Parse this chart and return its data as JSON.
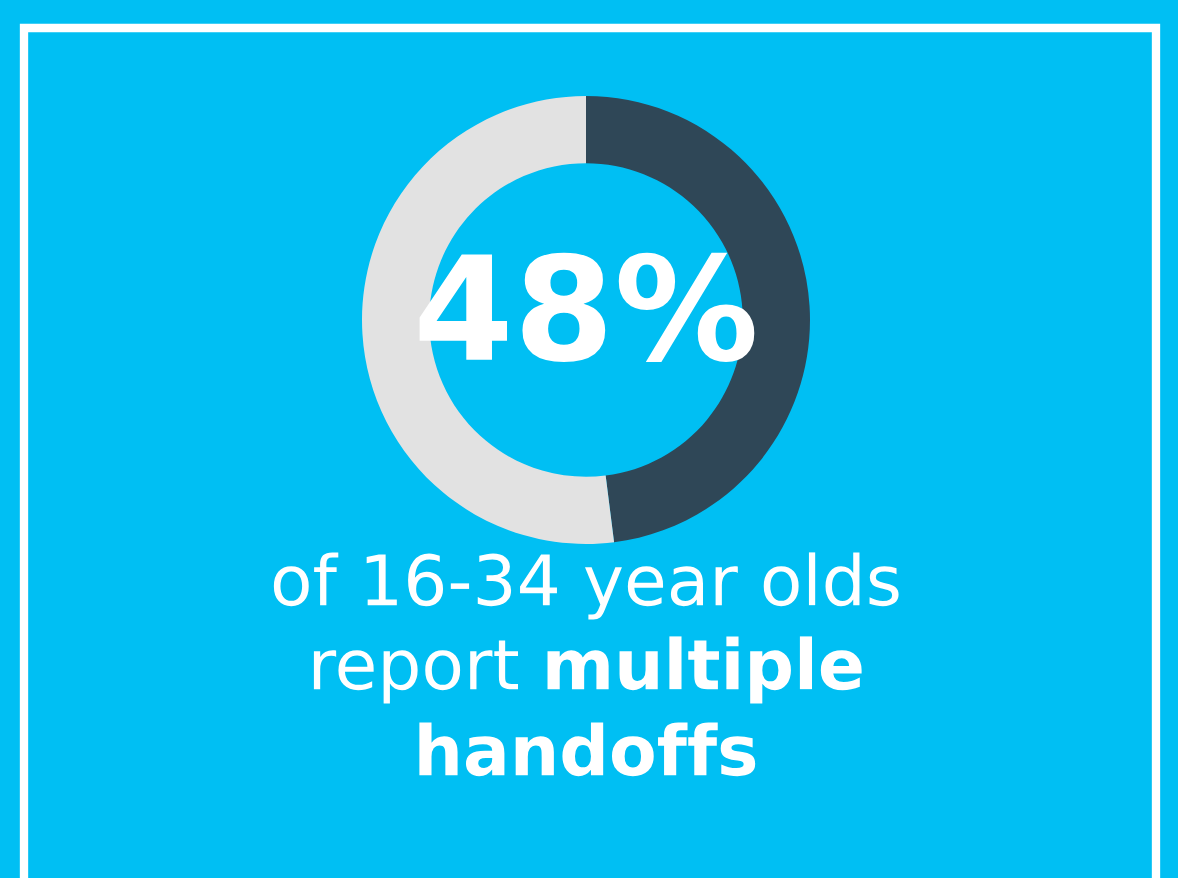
{
  "chart_data": {
    "type": "donut",
    "categories": [
      null,
      null
    ],
    "values": [
      48,
      52
    ],
    "colors": [
      "#2f4757",
      "#e2e2e2"
    ],
    "annotations": [
      "48%",
      "of 16-34 year olds",
      "report",
      "multiple",
      "handoffs"
    ]
  }
}
